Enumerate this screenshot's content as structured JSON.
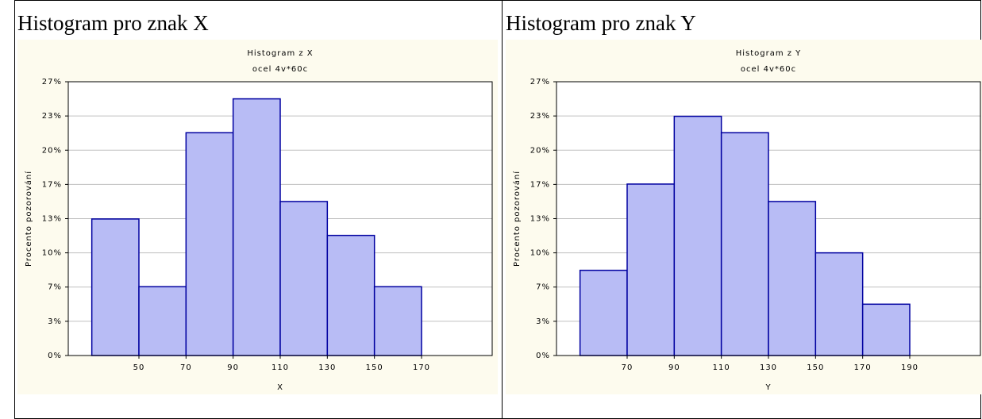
{
  "headers": [
    "Histogram pro znak X",
    "Histogram pro znak Y"
  ],
  "chart_data": [
    {
      "type": "histogram",
      "title": "Histogram z X",
      "subtitle": "ocel 4v*60c",
      "xlabel": "X",
      "ylabel": "Procento pozorování",
      "bins": [
        30,
        50,
        70,
        90,
        110,
        130,
        150,
        170
      ],
      "values": [
        13.3,
        6.7,
        21.7,
        25,
        15,
        11.7,
        6.7
      ],
      "color": "#b8bcf5",
      "edge_color": "#0000a0",
      "grid": true,
      "xlim": [
        20,
        200
      ],
      "xticks": [
        50,
        70,
        90,
        110,
        130,
        150,
        170
      ],
      "ylim": [
        0,
        26.667
      ],
      "yticks": [
        {
          "value": 0,
          "label": "0%"
        },
        {
          "value": 3.333,
          "label": "3%"
        },
        {
          "value": 6.667,
          "label": "7%"
        },
        {
          "value": 10,
          "label": "10%"
        },
        {
          "value": 13.333,
          "label": "13%"
        },
        {
          "value": 16.667,
          "label": "17%"
        },
        {
          "value": 20,
          "label": "20%"
        },
        {
          "value": 23.333,
          "label": "23%"
        },
        {
          "value": 26.667,
          "label": "27%"
        }
      ]
    },
    {
      "type": "histogram",
      "title": "Histogram z Y",
      "subtitle": "ocel 4v*60c",
      "xlabel": "Y",
      "ylabel": "Procento pozorování",
      "bins": [
        50,
        70,
        90,
        110,
        130,
        150,
        170,
        190
      ],
      "values": [
        8.3,
        16.7,
        23.3,
        21.7,
        15,
        10,
        5
      ],
      "color": "#b8bcf5",
      "edge_color": "#0000a0",
      "grid": true,
      "xlim": [
        40,
        220
      ],
      "xticks": [
        70,
        90,
        110,
        130,
        150,
        170,
        190
      ],
      "ylim": [
        0,
        26.667
      ],
      "yticks": [
        {
          "value": 0,
          "label": "0%"
        },
        {
          "value": 3.333,
          "label": "3%"
        },
        {
          "value": 6.667,
          "label": "7%"
        },
        {
          "value": 10,
          "label": "10%"
        },
        {
          "value": 13.333,
          "label": "13%"
        },
        {
          "value": 16.667,
          "label": "17%"
        },
        {
          "value": 20,
          "label": "20%"
        },
        {
          "value": 23.333,
          "label": "23%"
        },
        {
          "value": 26.667,
          "label": "27%"
        }
      ]
    }
  ]
}
